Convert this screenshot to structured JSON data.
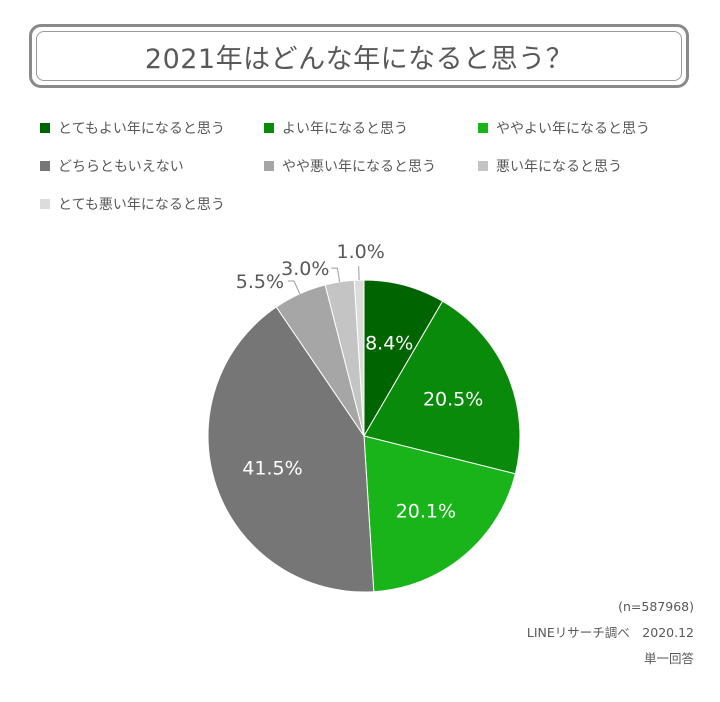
{
  "chart_data": {
    "type": "pie",
    "title": "2021年はどんな年になると思う？",
    "categories": [
      "とてもよい年になると思う",
      "よい年になると思う",
      "ややよい年になると思う",
      "どちらともいえない",
      "やや悪い年になると思う",
      "悪い年になると思う",
      "とても悪い年になると思う"
    ],
    "values": [
      8.4,
      20.5,
      20.1,
      41.5,
      5.5,
      3.0,
      1.0
    ],
    "labels": [
      "8.4%",
      "20.5%",
      "20.1%",
      "41.5%",
      "5.5%",
      "3.0%",
      "1.0%"
    ],
    "colors": [
      "#006400",
      "#0a8a0a",
      "#19b419",
      "#767676",
      "#a6a6a6",
      "#c4c4c4",
      "#dcdcdc"
    ],
    "legend_position": "top",
    "start_angle": "12 o'clock, clockwise"
  },
  "notes": {
    "sample": "(n=587968)",
    "source": "LINEリサーチ調べ　2020.12",
    "answer_type": "単一回答"
  }
}
